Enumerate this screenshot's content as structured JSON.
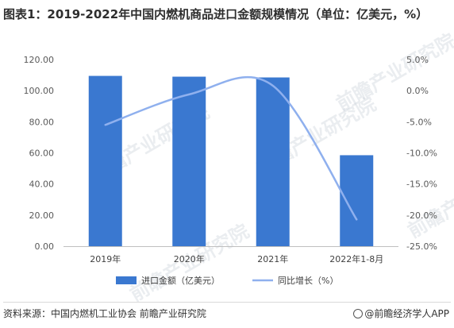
{
  "title": "图表1：2019-2022年中国内燃机商品进口金额规模情况（单位：亿美元，%）",
  "source": "资料来源：中国内燃机工业协会 前瞻产业研究院",
  "brand": "@前瞻经济学人APP",
  "watermark": "前瞻产业研究院",
  "chart_data": {
    "type": "bar",
    "categories": [
      "2019年",
      "2020年",
      "2021年",
      "2022年1-8月"
    ],
    "series": [
      {
        "name": "进口金额（亿美元）",
        "kind": "bar",
        "axis": "left",
        "color": "#3a78d0",
        "values": [
          109.5,
          109.0,
          108.5,
          58.5
        ]
      },
      {
        "name": "同比增长（%）",
        "kind": "line",
        "axis": "right",
        "color": "#8fb0ee",
        "values": [
          -5.5,
          -0.6,
          0.8,
          -20.7
        ]
      }
    ],
    "y_left": {
      "min": 0,
      "max": 120,
      "step": 20,
      "tick_labels": [
        "0.00",
        "20.00",
        "40.00",
        "60.00",
        "80.00",
        "100.00",
        "120.00"
      ]
    },
    "y_right": {
      "min": -25,
      "max": 5,
      "step": 5,
      "tick_labels": [
        "-25.0%",
        "-20.0%",
        "-15.0%",
        "-10.0%",
        "-5.0%",
        "0.0%",
        "5.0%"
      ]
    },
    "legend": "bottom",
    "grid": false
  }
}
